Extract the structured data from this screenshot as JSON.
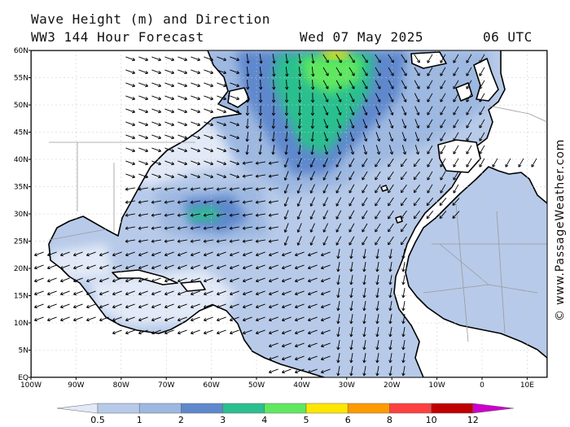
{
  "header": {
    "title": "Wave Height (m) and Direction",
    "subtitle": "WW3 144 Hour Forecast",
    "date": "Wed 07 May 2025",
    "time": "06 UTC"
  },
  "credit": "© www.PassageWeather.com",
  "map": {
    "region": "North Atlantic",
    "lat_labels": [
      "60N",
      "55N",
      "50N",
      "45N",
      "40N",
      "35N",
      "30N",
      "25N",
      "20N",
      "15N",
      "10N",
      "5N",
      "EQ"
    ],
    "lon_labels": [
      "100W",
      "90W",
      "80W",
      "70W",
      "60W",
      "50W",
      "40W",
      "30W",
      "20W",
      "10W",
      "0",
      "10E"
    ],
    "colors": {
      "land": "#ffffff",
      "coast": "#000000",
      "borders": "#9a9a9a",
      "arrows": "#000000"
    }
  },
  "legend": {
    "ticks": [
      "0.5",
      "1",
      "2",
      "3",
      "4",
      "5",
      "6",
      "8",
      "10",
      "12"
    ],
    "colors": [
      "#e3eaf7",
      "#b7cae9",
      "#9db8e1",
      "#5f88cd",
      "#2bbf8f",
      "#5fe85f",
      "#ffe600",
      "#ff9a00",
      "#ff4040",
      "#c00000",
      "#cc00cc"
    ]
  }
}
